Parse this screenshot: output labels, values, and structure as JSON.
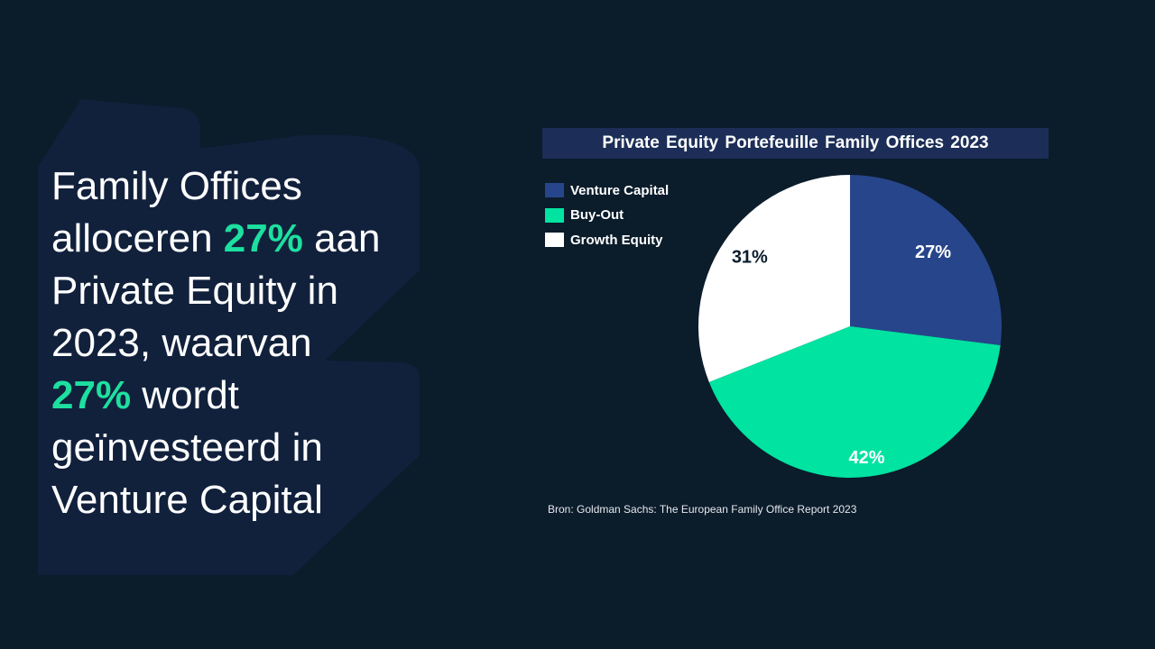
{
  "headline": {
    "line1": "Family Offices",
    "line2_pre": "alloceren ",
    "line2_accent": "27%",
    "line2_post": " aan",
    "line3": "Private Equity in",
    "line4": "2023, waarvan",
    "line5_accent": "27%",
    "line5_post": " wordt",
    "line6": "geïnvesteerd in",
    "line7": "Venture Capital"
  },
  "colors": {
    "background": "#0b1c2b",
    "accent": "#1de0a0",
    "title_bar": "#1c2e57",
    "venture_capital": "#27458a",
    "buy_out": "#00e3a1",
    "growth_equity": "#ffffff"
  },
  "chart_data": {
    "type": "pie",
    "title": "Private Equity Portefeuille Family Offices 2023",
    "categories": [
      "Venture Capital",
      "Buy-Out",
      "Growth Equity"
    ],
    "values": [
      27,
      42,
      31
    ],
    "labels": [
      "27%",
      "42%",
      "31%"
    ],
    "legend_position": "top-left",
    "colors": [
      "#27458a",
      "#00e3a1",
      "#ffffff"
    ],
    "label_colors": [
      "#ffffff",
      "#ffffff",
      "#0b1c2b"
    ]
  },
  "source": "Bron: Goldman Sachs: The European Family Office Report 2023"
}
